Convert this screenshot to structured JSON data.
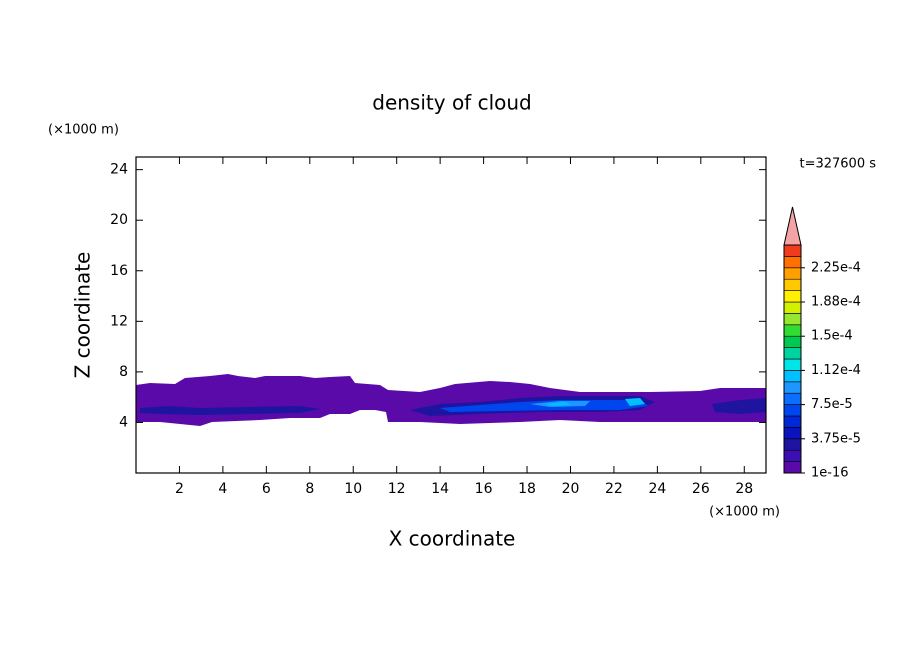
{
  "chart_data": {
    "type": "contour",
    "title": "density of cloud",
    "time_label": "t=327600 s",
    "x_label": "X coordinate",
    "y_label": "Z coordinate",
    "x_unit": "(×1000 m)",
    "y_unit": "(×1000 m)",
    "xlim": [
      0,
      29
    ],
    "xticks": [
      2,
      4,
      6,
      8,
      10,
      12,
      14,
      16,
      18,
      20,
      22,
      24,
      26,
      28
    ],
    "ylim": [
      0,
      25
    ],
    "yticks": [
      4,
      8,
      12,
      16,
      20,
      24
    ],
    "colorbar": {
      "clim": [
        0,
        0.00025
      ],
      "extend_color": "#f4a4a4",
      "colors": [
        "#5a0aa8",
        "#3c0fb4",
        "#1e14a0",
        "#0a14be",
        "#0028d8",
        "#0046ee",
        "#0a6eff",
        "#1e96ff",
        "#00c0ff",
        "#00e6e6",
        "#00d2a0",
        "#00c850",
        "#32dc32",
        "#96e632",
        "#d2f000",
        "#fff000",
        "#ffc800",
        "#ffa000",
        "#ff7000",
        "#f03c1e"
      ],
      "ticks": [
        {
          "value": 1e-16,
          "label": "1e-16"
        },
        {
          "value": 3.75e-05,
          "label": "3.75e-5"
        },
        {
          "value": 7.5e-05,
          "label": "7.5e-5"
        },
        {
          "value": 0.0001125,
          "label": "1.12e-4"
        },
        {
          "value": 0.00015,
          "label": "1.5e-4"
        },
        {
          "value": 0.0001875,
          "label": "1.88e-4"
        },
        {
          "value": 0.000225,
          "label": "2.25e-4"
        }
      ]
    }
  }
}
